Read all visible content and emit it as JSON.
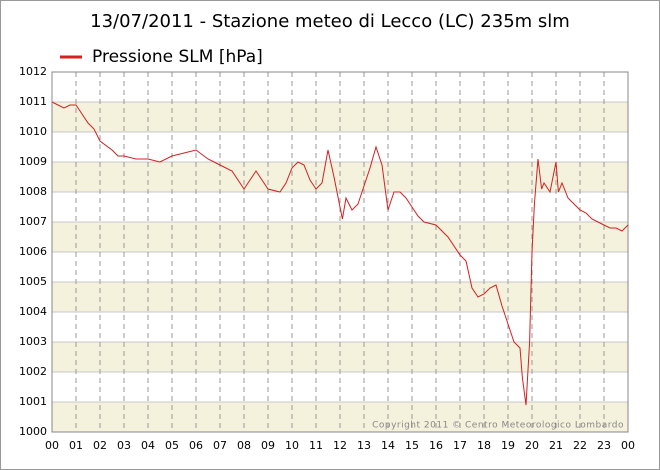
{
  "chart_data": {
    "type": "line",
    "title": "13/07/2011 - Stazione meteo di Lecco (LC) 235m slm",
    "annotation": "Copyright 2011 © Centro Meteorologico Lombardo",
    "x": [
      0,
      0.25,
      0.5,
      0.75,
      1,
      1.25,
      1.5,
      1.75,
      2,
      2.5,
      2.75,
      3,
      3.5,
      4,
      4.5,
      5,
      5.5,
      6,
      6.5,
      7,
      7.5,
      8,
      8.25,
      8.5,
      8.75,
      9,
      9.5,
      9.75,
      10,
      10.25,
      10.5,
      10.75,
      11,
      11.25,
      11.5,
      11.75,
      12,
      12.1,
      12.25,
      12.5,
      12.75,
      13,
      13.25,
      13.5,
      13.75,
      14,
      14.25,
      14.5,
      14.75,
      15,
      15.25,
      15.5,
      16,
      16.5,
      17,
      17.25,
      17.5,
      17.75,
      18,
      18.25,
      18.5,
      18.75,
      19,
      19.25,
      19.5,
      19.6,
      19.75,
      19.9,
      20,
      20.1,
      20.25,
      20.4,
      20.5,
      20.75,
      21,
      21.1,
      21.25,
      21.5,
      21.75,
      22,
      22.25,
      22.5,
      22.75,
      23,
      23.25,
      23.5,
      23.75,
      24
    ],
    "series": [
      {
        "name": "Pressione SLM [hPa]",
        "color": "#d42020",
        "values": [
          1011.0,
          1010.9,
          1010.8,
          1010.9,
          1010.9,
          1010.6,
          1010.3,
          1010.1,
          1009.7,
          1009.4,
          1009.2,
          1009.2,
          1009.1,
          1009.1,
          1009.0,
          1009.2,
          1009.3,
          1009.4,
          1009.1,
          1008.9,
          1008.7,
          1008.1,
          1008.4,
          1008.7,
          1008.4,
          1008.1,
          1008.0,
          1008.3,
          1008.8,
          1009.0,
          1008.9,
          1008.4,
          1008.1,
          1008.3,
          1009.4,
          1008.5,
          1007.5,
          1007.1,
          1007.8,
          1007.4,
          1007.6,
          1008.2,
          1008.8,
          1009.5,
          1008.9,
          1007.4,
          1008.0,
          1008.0,
          1007.8,
          1007.5,
          1007.2,
          1007.0,
          1006.9,
          1006.5,
          1005.9,
          1005.7,
          1004.8,
          1004.5,
          1004.6,
          1004.8,
          1004.9,
          1004.2,
          1003.6,
          1003.0,
          1002.8,
          1001.8,
          1000.9,
          1003.0,
          1006.0,
          1007.6,
          1009.1,
          1008.1,
          1008.3,
          1008.0,
          1009.0,
          1008.0,
          1008.3,
          1007.8,
          1007.6,
          1007.4,
          1007.3,
          1007.1,
          1007.0,
          1006.9,
          1006.8,
          1006.8,
          1006.7,
          1006.9
        ]
      }
    ],
    "xlim": [
      0,
      24
    ],
    "xticks": [
      {
        "value": 0,
        "label": "00"
      },
      {
        "value": 1,
        "label": "01"
      },
      {
        "value": 2,
        "label": "02"
      },
      {
        "value": 3,
        "label": "03"
      },
      {
        "value": 4,
        "label": "04"
      },
      {
        "value": 5,
        "label": "05"
      },
      {
        "value": 6,
        "label": "06"
      },
      {
        "value": 7,
        "label": "07"
      },
      {
        "value": 8,
        "label": "08"
      },
      {
        "value": 9,
        "label": "09"
      },
      10,
      11,
      12,
      13,
      14,
      15,
      16,
      17,
      18,
      19,
      20,
      21,
      22,
      23,
      {
        "value": 24,
        "label": "00"
      }
    ],
    "ylim": [
      1000,
      1012
    ],
    "yticks": [
      1000,
      1001,
      1002,
      1003,
      1004,
      1005,
      1006,
      1007,
      1008,
      1009,
      1010,
      1011,
      1012
    ],
    "grid": true,
    "band_color": "#f4f1dc",
    "legend": "top-left"
  }
}
